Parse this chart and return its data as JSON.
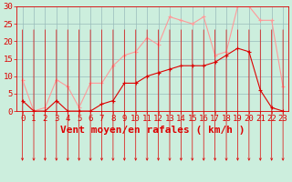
{
  "hours": [
    0,
    1,
    2,
    3,
    4,
    5,
    6,
    7,
    8,
    9,
    10,
    11,
    12,
    13,
    14,
    15,
    16,
    17,
    18,
    19,
    20,
    21,
    22,
    23
  ],
  "avg_wind": [
    3,
    0,
    0,
    3,
    0,
    0,
    0,
    2,
    3,
    8,
    8,
    10,
    11,
    12,
    13,
    13,
    13,
    14,
    16,
    18,
    17,
    6,
    1,
    0
  ],
  "gust_wind": [
    9,
    0,
    1,
    9,
    7,
    1,
    8,
    8,
    13,
    16,
    17,
    21,
    19,
    27,
    26,
    25,
    27,
    16,
    17,
    30,
    30,
    26,
    26,
    7
  ],
  "avg_color": "#dd0000",
  "gust_color": "#ff9999",
  "bg_color": "#cceedd",
  "grid_color": "#99bbbb",
  "xlabel": "Vent moyen/en rafales ( km/h )",
  "ylim": [
    0,
    30
  ],
  "yticks": [
    0,
    5,
    10,
    15,
    20,
    25,
    30
  ],
  "tick_fontsize": 6.5,
  "xlabel_fontsize": 8
}
